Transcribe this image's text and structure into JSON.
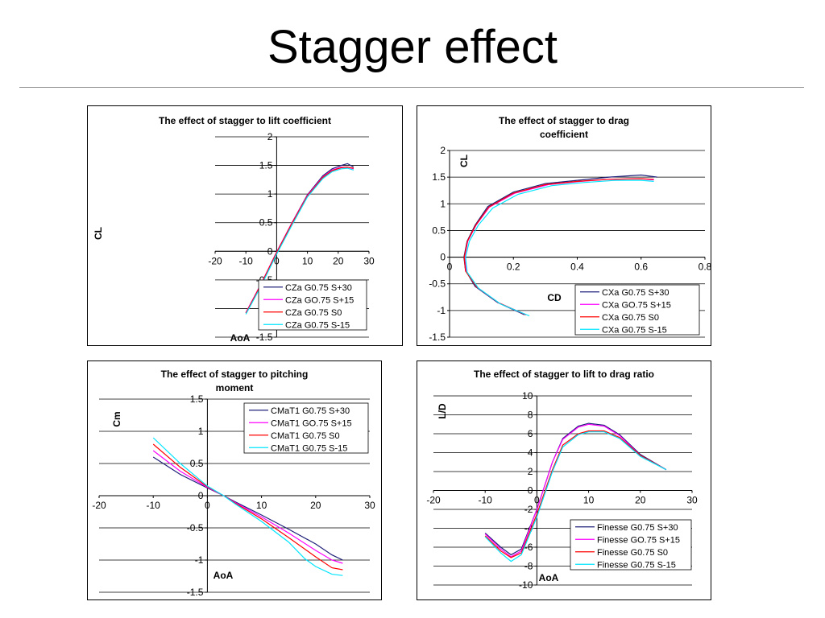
{
  "slide": {
    "title": "Stagger effect"
  },
  "chart_data": [
    {
      "id": "lift",
      "type": "line",
      "title": [
        "The effect of stagger to lift coefficient"
      ],
      "xlabel": "AoA",
      "ylabel": "CL",
      "xlim": [
        -20,
        30
      ],
      "ylim": [
        -1.5,
        2
      ],
      "xticks": [
        -20,
        -10,
        0,
        10,
        20,
        30
      ],
      "yticks": [
        -1.5,
        -1,
        -0.5,
        0,
        0.5,
        1,
        1.5,
        2
      ],
      "legend_position": "bottom-right",
      "series": [
        {
          "name": "CZa G0.75 S+30",
          "color": "#1f1f7a",
          "points": [
            [
              -10,
              -1.08
            ],
            [
              -5,
              -0.57
            ],
            [
              0,
              -0.02
            ],
            [
              5,
              0.5
            ],
            [
              10,
              0.99
            ],
            [
              15,
              1.32
            ],
            [
              18,
              1.44
            ],
            [
              21,
              1.5
            ],
            [
              23,
              1.53
            ],
            [
              25,
              1.47
            ]
          ]
        },
        {
          "name": "CZa GO.75 S+15",
          "color": "#ff00ff",
          "points": [
            [
              -10,
              -1.07
            ],
            [
              -5,
              -0.56
            ],
            [
              0,
              -0.01
            ],
            [
              5,
              0.5
            ],
            [
              10,
              0.98
            ],
            [
              15,
              1.3
            ],
            [
              18,
              1.42
            ],
            [
              21,
              1.47
            ],
            [
              23,
              1.47
            ],
            [
              25,
              1.44
            ]
          ]
        },
        {
          "name": "CZa G0.75 S0",
          "color": "#ff0000",
          "points": [
            [
              -10,
              -1.08
            ],
            [
              -5,
              -0.57
            ],
            [
              0,
              -0.02
            ],
            [
              5,
              0.49
            ],
            [
              10,
              0.97
            ],
            [
              15,
              1.29
            ],
            [
              18,
              1.41
            ],
            [
              21,
              1.46
            ],
            [
              23,
              1.47
            ],
            [
              25,
              1.45
            ]
          ]
        },
        {
          "name": "CZa G0.75 S-15",
          "color": "#00e5ff",
          "points": [
            [
              -10,
              -1.1
            ],
            [
              -5,
              -0.6
            ],
            [
              0,
              -0.05
            ],
            [
              5,
              0.46
            ],
            [
              10,
              0.95
            ],
            [
              15,
              1.27
            ],
            [
              18,
              1.39
            ],
            [
              21,
              1.44
            ],
            [
              23,
              1.45
            ],
            [
              25,
              1.42
            ]
          ]
        }
      ]
    },
    {
      "id": "drag",
      "type": "line",
      "title": [
        "The effect of stagger to drag",
        "coefficient"
      ],
      "xlabel": "CD",
      "ylabel": "CL",
      "xlim": [
        0,
        0.8
      ],
      "ylim": [
        -1.5,
        2
      ],
      "xticks": [
        0,
        0.2,
        0.4,
        0.6,
        0.8
      ],
      "yticks": [
        -1.5,
        -1,
        -0.5,
        0,
        0.5,
        1,
        1.5,
        2
      ],
      "legend_position": "bottom-right",
      "series": [
        {
          "name": "CXa G0.75 S+30",
          "color": "#1f1f7a",
          "points": [
            [
              0.235,
              -1.08
            ],
            [
              0.15,
              -0.85
            ],
            [
              0.08,
              -0.55
            ],
            [
              0.05,
              -0.25
            ],
            [
              0.045,
              0
            ],
            [
              0.055,
              0.3
            ],
            [
              0.08,
              0.6
            ],
            [
              0.12,
              0.95
            ],
            [
              0.2,
              1.22
            ],
            [
              0.3,
              1.38
            ],
            [
              0.4,
              1.44
            ],
            [
              0.5,
              1.5
            ],
            [
              0.6,
              1.54
            ],
            [
              0.65,
              1.5
            ]
          ]
        },
        {
          "name": "CXa GO.75 S+15",
          "color": "#ff00ff",
          "points": [
            [
              0.24,
              -1.08
            ],
            [
              0.155,
              -0.86
            ],
            [
              0.085,
              -0.56
            ],
            [
              0.052,
              -0.26
            ],
            [
              0.047,
              0
            ],
            [
              0.057,
              0.3
            ],
            [
              0.083,
              0.6
            ],
            [
              0.125,
              0.94
            ],
            [
              0.205,
              1.2
            ],
            [
              0.31,
              1.36
            ],
            [
              0.41,
              1.42
            ],
            [
              0.5,
              1.46
            ],
            [
              0.6,
              1.47
            ],
            [
              0.64,
              1.45
            ]
          ]
        },
        {
          "name": "CXa G0.75 S0",
          "color": "#ff0000",
          "points": [
            [
              0.24,
              -1.08
            ],
            [
              0.155,
              -0.86
            ],
            [
              0.085,
              -0.56
            ],
            [
              0.05,
              -0.26
            ],
            [
              0.046,
              0
            ],
            [
              0.056,
              0.3
            ],
            [
              0.082,
              0.6
            ],
            [
              0.123,
              0.94
            ],
            [
              0.2,
              1.2
            ],
            [
              0.3,
              1.36
            ],
            [
              0.4,
              1.42
            ],
            [
              0.5,
              1.46
            ],
            [
              0.6,
              1.47
            ],
            [
              0.64,
              1.46
            ]
          ]
        },
        {
          "name": "CXa G0.75 S-15",
          "color": "#00e5ff",
          "points": [
            [
              0.25,
              -1.1
            ],
            [
              0.16,
              -0.88
            ],
            [
              0.09,
              -0.58
            ],
            [
              0.055,
              -0.28
            ],
            [
              0.05,
              0
            ],
            [
              0.062,
              0.3
            ],
            [
              0.09,
              0.6
            ],
            [
              0.135,
              0.92
            ],
            [
              0.215,
              1.18
            ],
            [
              0.32,
              1.34
            ],
            [
              0.42,
              1.4
            ],
            [
              0.52,
              1.44
            ],
            [
              0.6,
              1.44
            ],
            [
              0.64,
              1.42
            ]
          ]
        }
      ]
    },
    {
      "id": "pitch",
      "type": "line",
      "title": [
        "The effect of stagger to pitching",
        "moment"
      ],
      "xlabel": "AoA",
      "ylabel": "Cm",
      "xlim": [
        -20,
        30
      ],
      "ylim": [
        -1.5,
        1.5
      ],
      "xticks": [
        -20,
        -10,
        0,
        10,
        20,
        30
      ],
      "yticks": [
        -1.5,
        -1,
        -0.5,
        0,
        0.5,
        1,
        1.5
      ],
      "legend_position": "top-right",
      "series": [
        {
          "name": "CMaT1 G0.75 S+30",
          "color": "#1f1f7a",
          "points": [
            [
              -10,
              0.6
            ],
            [
              -5,
              0.33
            ],
            [
              0,
              0.12
            ],
            [
              3,
              0
            ],
            [
              5,
              -0.09
            ],
            [
              10,
              -0.3
            ],
            [
              15,
              -0.52
            ],
            [
              20,
              -0.75
            ],
            [
              23,
              -0.92
            ],
            [
              25,
              -1
            ]
          ]
        },
        {
          "name": "CMaT1 GO.75 S+15",
          "color": "#ff00ff",
          "points": [
            [
              -10,
              0.7
            ],
            [
              -5,
              0.38
            ],
            [
              0,
              0.13
            ],
            [
              3,
              0
            ],
            [
              5,
              -0.1
            ],
            [
              10,
              -0.33
            ],
            [
              15,
              -0.58
            ],
            [
              20,
              -0.85
            ],
            [
              23,
              -1
            ],
            [
              25,
              -1.05
            ]
          ]
        },
        {
          "name": "CMaT1 G0.75 S0",
          "color": "#ff0000",
          "points": [
            [
              -10,
              0.8
            ],
            [
              -5,
              0.44
            ],
            [
              0,
              0.14
            ],
            [
              3,
              0
            ],
            [
              5,
              -0.11
            ],
            [
              10,
              -0.36
            ],
            [
              15,
              -0.65
            ],
            [
              20,
              -0.95
            ],
            [
              23,
              -1.12
            ],
            [
              25,
              -1.15
            ]
          ]
        },
        {
          "name": "CMaT1 G0.75 S-15",
          "color": "#00e5ff",
          "points": [
            [
              -10,
              0.9
            ],
            [
              -5,
              0.5
            ],
            [
              0,
              0.15
            ],
            [
              3,
              0
            ],
            [
              5,
              -0.12
            ],
            [
              10,
              -0.4
            ],
            [
              15,
              -0.72
            ],
            [
              18,
              -0.98
            ],
            [
              20,
              -1.1
            ],
            [
              23,
              -1.22
            ],
            [
              25,
              -1.24
            ]
          ]
        }
      ]
    },
    {
      "id": "ld",
      "type": "line",
      "title": [
        "The effect of stagger to lift to drag ratio"
      ],
      "xlabel": "AoA",
      "ylabel": "L/D",
      "xlim": [
        -20,
        30
      ],
      "ylim": [
        -10,
        10
      ],
      "xticks": [
        -20,
        -10,
        0,
        10,
        20,
        30
      ],
      "yticks": [
        -10,
        -8,
        -6,
        -4,
        -2,
        0,
        2,
        4,
        6,
        8,
        10
      ],
      "legend_position": "bottom-right",
      "series": [
        {
          "name": "Finesse G0.75 S+30",
          "color": "#1f1f7a",
          "points": [
            [
              -10,
              -4.5
            ],
            [
              -7,
              -6
            ],
            [
              -5,
              -6.8
            ],
            [
              -3,
              -6.2
            ],
            [
              0,
              -2
            ],
            [
              3,
              3
            ],
            [
              5,
              5.5
            ],
            [
              8,
              6.8
            ],
            [
              10,
              7.1
            ],
            [
              13,
              6.9
            ],
            [
              16,
              5.9
            ],
            [
              20,
              3.8
            ],
            [
              25,
              2.2
            ]
          ]
        },
        {
          "name": "Finesse GO.75 S+15",
          "color": "#ff00ff",
          "points": [
            [
              -10,
              -4.6
            ],
            [
              -7,
              -6.2
            ],
            [
              -5,
              -7
            ],
            [
              -3,
              -6.4
            ],
            [
              0,
              -2
            ],
            [
              3,
              3
            ],
            [
              5,
              5.4
            ],
            [
              8,
              6.7
            ],
            [
              10,
              7
            ],
            [
              13,
              6.8
            ],
            [
              16,
              5.8
            ],
            [
              20,
              3.7
            ],
            [
              25,
              2.2
            ]
          ]
        },
        {
          "name": "Finesse G0.75 S0",
          "color": "#ff0000",
          "points": [
            [
              -10,
              -4.8
            ],
            [
              -7,
              -6.4
            ],
            [
              -5,
              -7.1
            ],
            [
              -3,
              -6.6
            ],
            [
              0,
              -2.5
            ],
            [
              3,
              2.2
            ],
            [
              5,
              4.8
            ],
            [
              8,
              6
            ],
            [
              10,
              6.3
            ],
            [
              13,
              6.3
            ],
            [
              16,
              5.6
            ],
            [
              20,
              3.7
            ],
            [
              25,
              2.2
            ]
          ]
        },
        {
          "name": "Finesse G0.75 S-15",
          "color": "#00e5ff",
          "points": [
            [
              -10,
              -4.9
            ],
            [
              -7,
              -6.6
            ],
            [
              -5,
              -7.5
            ],
            [
              -3,
              -6.8
            ],
            [
              0,
              -2.8
            ],
            [
              3,
              2
            ],
            [
              5,
              4.6
            ],
            [
              8,
              5.9
            ],
            [
              10,
              6.2
            ],
            [
              13,
              6.2
            ],
            [
              16,
              5.5
            ],
            [
              20,
              3.6
            ],
            [
              25,
              2.2
            ]
          ]
        }
      ]
    }
  ]
}
